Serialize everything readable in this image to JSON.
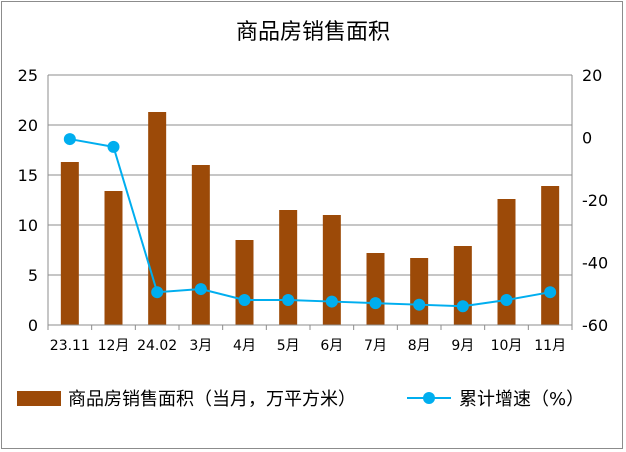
{
  "chart_data": {
    "type": "bar+line",
    "title": "商品房销售面积",
    "categories": [
      "23.11",
      "12月",
      "24.02",
      "3月",
      "4月",
      "5月",
      "6月",
      "7月",
      "8月",
      "9月",
      "10月",
      "11月"
    ],
    "series": [
      {
        "name": "商品房销售面积（当月，万平方米）",
        "type": "bar",
        "axis": "left",
        "values": [
          16.3,
          13.4,
          21.3,
          16.0,
          8.5,
          11.5,
          11.0,
          7.2,
          6.7,
          7.9,
          12.6,
          13.9
        ],
        "color": "#9c4a08"
      },
      {
        "name": "累计增速（%）",
        "type": "line",
        "axis": "right",
        "values": [
          -0.5,
          -3.0,
          -49.5,
          -48.5,
          -52.0,
          -52.0,
          -52.5,
          -53.0,
          -53.5,
          -54.0,
          -52.0,
          -49.5
        ],
        "color": "#00aeef"
      }
    ],
    "y_left": {
      "min": 0,
      "max": 25,
      "ticks": [
        0,
        5,
        10,
        15,
        20,
        25
      ]
    },
    "y_right": {
      "min": -60,
      "max": 20,
      "ticks": [
        -60,
        -40,
        -20,
        0,
        20
      ],
      "tick_labels": [
        "-60",
        "-40",
        "-20",
        "0",
        "20"
      ]
    },
    "grid": true,
    "legend": "bottom"
  }
}
